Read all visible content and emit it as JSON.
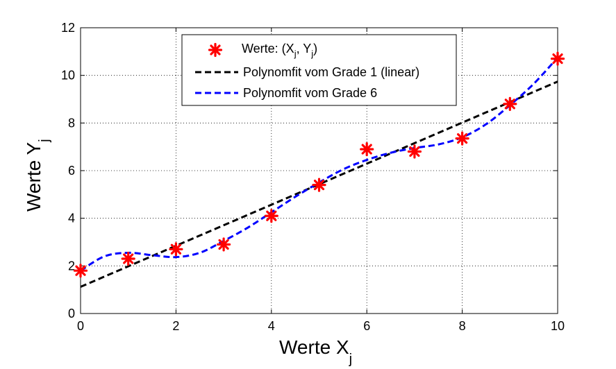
{
  "chart_data": {
    "type": "line",
    "xlabel": "Werte X",
    "xlabel_sub": "j",
    "ylabel": "Werte Y",
    "ylabel_sub": "j",
    "xlim": [
      0,
      10
    ],
    "ylim": [
      0,
      12
    ],
    "xticks": [
      0,
      2,
      4,
      6,
      8,
      10
    ],
    "yticks": [
      0,
      2,
      4,
      6,
      8,
      10,
      12
    ],
    "grid": true,
    "legend_position": "top-center",
    "legend": [
      {
        "series": "points",
        "label_prefix": "Werte: (X",
        "sub1": "j",
        "label_mid": ", Y",
        "sub2": "j",
        "label_suffix": ")"
      },
      {
        "series": "linear",
        "label": "Polynomfit vom Grade 1 (linear)"
      },
      {
        "series": "poly6",
        "label": "Polynomfit vom Grade 6"
      }
    ],
    "series": [
      {
        "id": "points",
        "style": "marker",
        "marker": "asterisk",
        "color": "#ff0000",
        "x": [
          0,
          1,
          2,
          3,
          4,
          5,
          6,
          7,
          8,
          9,
          10
        ],
        "y": [
          1.8,
          2.3,
          2.7,
          2.9,
          4.1,
          5.4,
          6.9,
          6.8,
          7.35,
          8.8,
          10.7
        ]
      },
      {
        "id": "linear",
        "style": "dashed",
        "color": "#000000",
        "x": [
          0,
          10
        ],
        "y": [
          1.12,
          9.74
        ]
      },
      {
        "id": "poly6",
        "style": "dashed",
        "color": "#0000ff",
        "x": [
          0,
          0.5,
          1,
          1.5,
          2,
          2.5,
          3,
          3.5,
          4,
          4.5,
          5,
          5.5,
          6,
          6.5,
          7,
          7.5,
          8,
          8.5,
          9,
          9.5,
          10
        ],
        "y": [
          1.8,
          2.4,
          2.55,
          2.45,
          2.37,
          2.55,
          3.05,
          3.6,
          4.25,
          4.9,
          5.5,
          6.05,
          6.45,
          6.75,
          6.95,
          7.1,
          7.4,
          7.95,
          8.75,
          9.65,
          10.75
        ]
      }
    ]
  }
}
